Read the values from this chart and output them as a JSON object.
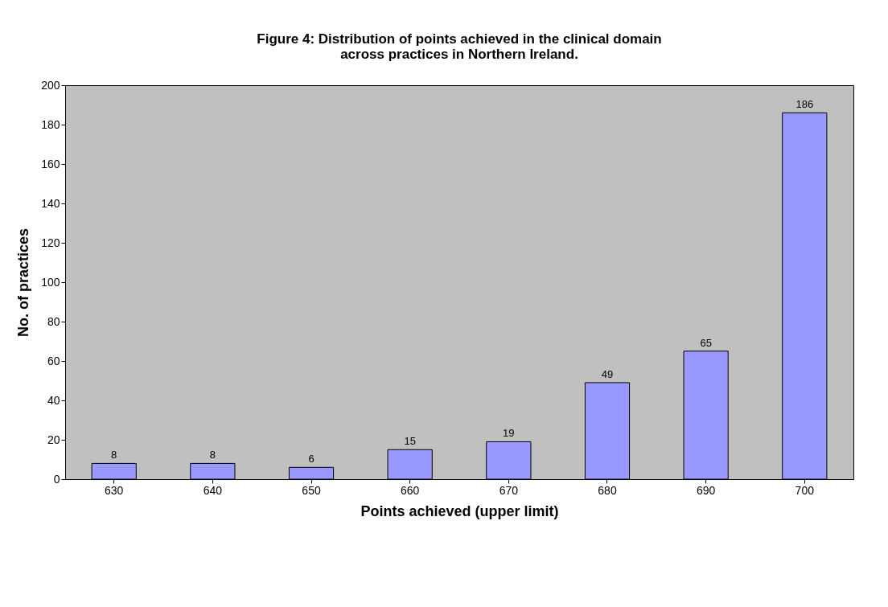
{
  "chart_data": {
    "type": "bar",
    "title": "Figure 4:  Distribution of points achieved in the clinical domain\nacross practices in Northern Ireland.",
    "xlabel": "Points achieved (upper limit)",
    "ylabel": "No. of practices",
    "categories": [
      "630",
      "640",
      "650",
      "660",
      "670",
      "680",
      "690",
      "700"
    ],
    "values": [
      8,
      8,
      6,
      15,
      19,
      49,
      65,
      186
    ],
    "color": "#9999ff",
    "ylim": [
      0,
      200
    ],
    "yticks": [
      0,
      20,
      40,
      60,
      80,
      100,
      120,
      140,
      160,
      180,
      200
    ],
    "grid": false,
    "data_labels": true
  }
}
